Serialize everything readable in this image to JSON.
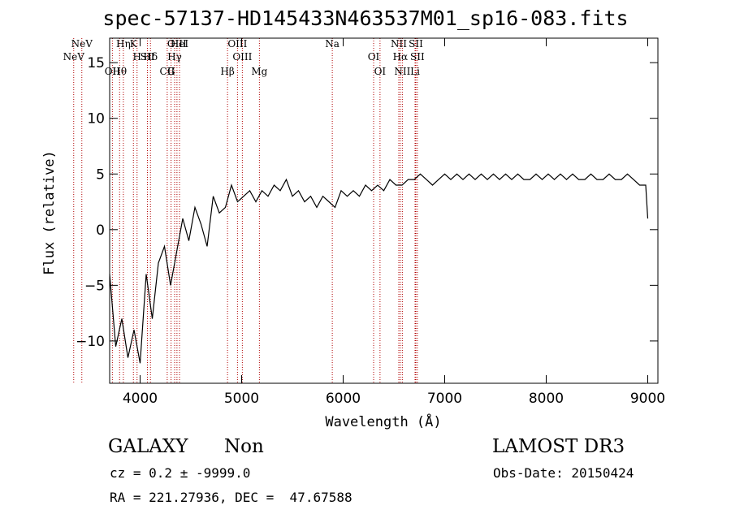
{
  "header": {
    "title": "spec-57137-HD145433N463537M01_sp16-083.fits"
  },
  "info": {
    "object_type": "GALAXY",
    "object_subtype": "Non",
    "cz": "cz = 0.2 ± -9999.0",
    "radec": "RA = 221.27936, DEC =  47.67588",
    "survey": "LAMOST DR3",
    "obs_date": "Obs-Date: 20150424"
  },
  "colors": {
    "axis": "#000000",
    "spectrum": "#000000",
    "line_marker": "#b00000",
    "label": "#000000"
  },
  "chart_data": {
    "type": "line",
    "title": "spec-57137-HD145433N463537M01_sp16-083.fits",
    "xlabel": "Wavelength (Å)",
    "ylabel": "Flux (relative)",
    "xlim": [
      3700,
      9100
    ],
    "ylim": [
      -13.8,
      17.2
    ],
    "x_ticks": [
      4000,
      5000,
      6000,
      7000,
      8000,
      9000
    ],
    "y_ticks": [
      -10,
      -5,
      0,
      5,
      10,
      15
    ],
    "x_tick_labels": [
      "4000",
      "5000",
      "6000",
      "7000",
      "8000",
      "9000"
    ],
    "y_tick_labels": [
      "−10",
      "−5",
      "0",
      "5",
      "10",
      "15"
    ],
    "grid": false,
    "legend": "none",
    "series": [
      {
        "x": [
          3700,
          3760,
          3820,
          3880,
          3940,
          4000,
          4060,
          4120,
          4180,
          4240,
          4300,
          4360,
          4420,
          4480,
          4540,
          4600,
          4660,
          4720,
          4780,
          4840,
          4900,
          4960,
          5020,
          5080,
          5140,
          5200,
          5260,
          5320,
          5380,
          5440,
          5500,
          5560,
          5620,
          5680,
          5740,
          5800,
          5860,
          5920,
          5980,
          6040,
          6100,
          6160,
          6220,
          6280,
          6340,
          6400,
          6460,
          6520,
          6580,
          6640,
          6700,
          6760,
          6820,
          6880,
          6940,
          7000,
          7060,
          7120,
          7180,
          7240,
          7300,
          7360,
          7420,
          7480,
          7540,
          7600,
          7660,
          7720,
          7780,
          7840,
          7900,
          7960,
          8020,
          8080,
          8140,
          8200,
          8260,
          8320,
          8380,
          8440,
          8500,
          8560,
          8620,
          8680,
          8740,
          8800,
          8860,
          8920,
          8980,
          9000
        ],
        "y": [
          -4.0,
          -10.5,
          -8.0,
          -11.5,
          -9.0,
          -12.0,
          -4.0,
          -8.0,
          -3.0,
          -1.5,
          -5.0,
          -2.0,
          1.0,
          -1.0,
          2.0,
          0.5,
          -1.5,
          3.0,
          1.5,
          2.0,
          4.0,
          2.5,
          3.0,
          3.5,
          2.5,
          3.5,
          3.0,
          4.0,
          3.5,
          4.5,
          3.0,
          3.5,
          2.5,
          3.0,
          2.0,
          3.0,
          2.5,
          2.0,
          3.5,
          3.0,
          3.5,
          3.0,
          4.0,
          3.5,
          4.0,
          3.5,
          4.5,
          4.0,
          4.0,
          4.5,
          4.5,
          5.0,
          4.5,
          4.0,
          4.5,
          5.0,
          4.5,
          5.0,
          4.5,
          5.0,
          4.5,
          5.0,
          4.5,
          5.0,
          4.5,
          5.0,
          4.5,
          5.0,
          4.5,
          4.5,
          5.0,
          4.5,
          5.0,
          4.5,
          5.0,
          4.5,
          5.0,
          4.5,
          4.5,
          5.0,
          4.5,
          4.5,
          5.0,
          4.5,
          4.5,
          5.0,
          4.5,
          4.0,
          4.0,
          1.0
        ]
      }
    ],
    "annotations": [
      {
        "text": "NeV",
        "x": 3426
      },
      {
        "text": "NeV",
        "x": 3346
      },
      {
        "text": "OII",
        "x": 3727
      },
      {
        "text": "Hη",
        "x": 3835
      },
      {
        "text": "H",
        "x": 3970
      },
      {
        "text": "Hθ",
        "x": 3798
      },
      {
        "text": "K",
        "x": 3934
      },
      {
        "text": "Hδ",
        "x": 4102
      },
      {
        "text": "CII",
        "x": 4267
      },
      {
        "text": "HeI",
        "x": 4388
      },
      {
        "text": "SII",
        "x": 4072
      },
      {
        "text": "G",
        "x": 4305
      },
      {
        "text": "OIII",
        "x": 4363
      },
      {
        "text": "Hγ",
        "x": 4340
      },
      {
        "text": "Hβ",
        "x": 4861
      },
      {
        "text": "OIII",
        "x": 4959
      },
      {
        "text": "OIII",
        "x": 5007
      },
      {
        "text": "Mg",
        "x": 5175
      },
      {
        "text": "Na",
        "x": 5893
      },
      {
        "text": "OI",
        "x": 6300
      },
      {
        "text": "OI",
        "x": 6363
      },
      {
        "text": "NII",
        "x": 6548
      },
      {
        "text": "Hα",
        "x": 6563
      },
      {
        "text": "NII",
        "x": 6583
      },
      {
        "text": "SII",
        "x": 6716
      },
      {
        "text": "SII",
        "x": 6731
      },
      {
        "text": "Li",
        "x": 6708
      }
    ]
  }
}
